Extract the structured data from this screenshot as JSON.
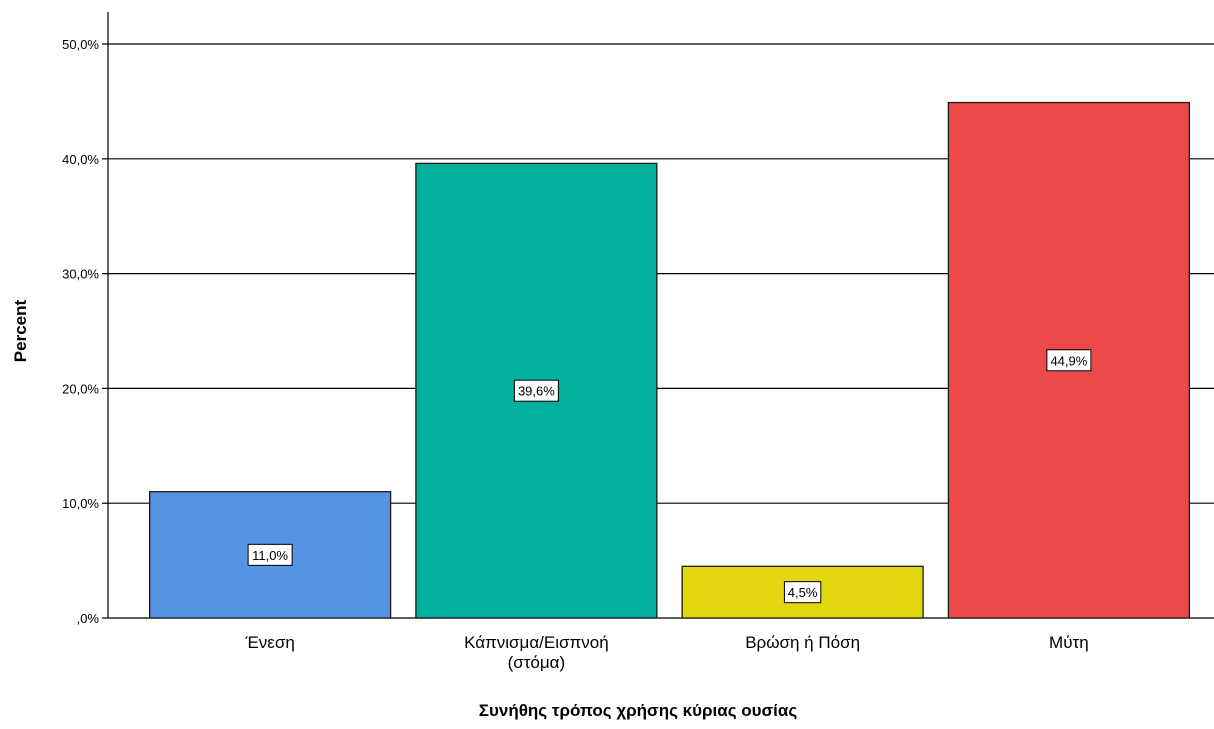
{
  "chart_data": {
    "type": "bar",
    "title": "",
    "xlabel": "Συνήθης τρόπος χρήσης κύριας ουσίας",
    "ylabel": "Percent",
    "ylim": [
      0,
      50
    ],
    "yticks": [
      0,
      10,
      20,
      30,
      40,
      50
    ],
    "ytick_labels": [
      ",0%",
      "10,0%",
      "20,0%",
      "30,0%",
      "40,0%",
      "50,0%"
    ],
    "categories": [
      [
        "Ένεση"
      ],
      [
        "Κάπνισμα/Εισπνοή",
        "(στόμα)"
      ],
      [
        "Βρώση ή Πόση"
      ],
      [
        "Μύτη"
      ]
    ],
    "values": [
      11.0,
      39.6,
      4.5,
      44.9
    ],
    "value_labels": [
      "11,0%",
      "39,6%",
      "4,5%",
      "44,9%"
    ],
    "bar_colors": [
      "#5593e3",
      "#00b09c",
      "#e3d70f",
      "#ec4a4a"
    ],
    "grid": true,
    "legend": "none"
  }
}
